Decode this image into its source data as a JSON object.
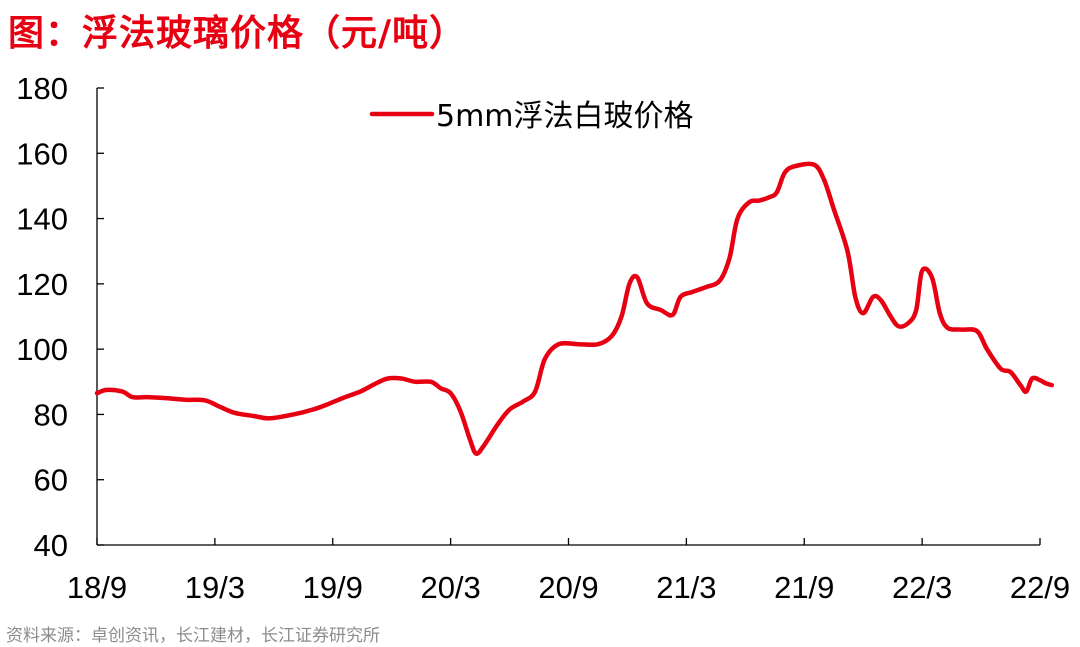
{
  "header": {
    "title": "图：浮法玻璃价格（元/吨）"
  },
  "footer": {
    "source": "资料来源：卓创资讯，长江建材，长江证券研究所"
  },
  "colors": {
    "title": "#e60012",
    "series": "#e60012",
    "axis": "#000000",
    "source_text": "#8c8c8c"
  },
  "chart_data": {
    "type": "line",
    "title": "图：浮法玻璃价格（元/吨）",
    "xlabel": "",
    "ylabel": "",
    "ylim": [
      40,
      180
    ],
    "yticks": [
      40,
      60,
      80,
      100,
      120,
      140,
      160,
      180
    ],
    "xlim": [
      0,
      48
    ],
    "xticks": [
      {
        "pos": 0,
        "label": "18/9"
      },
      {
        "pos": 6,
        "label": "19/3"
      },
      {
        "pos": 12,
        "label": "19/9"
      },
      {
        "pos": 18,
        "label": "20/3"
      },
      {
        "pos": 24,
        "label": "20/9"
      },
      {
        "pos": 30,
        "label": "21/3"
      },
      {
        "pos": 36,
        "label": "21/9"
      },
      {
        "pos": 42,
        "label": "22/3"
      },
      {
        "pos": 48,
        "label": "22/9"
      }
    ],
    "grid": false,
    "legend_position": "top-center",
    "series": [
      {
        "name": "5mm浮法白玻价格",
        "color": "#e60012",
        "points": [
          [
            0.0,
            86.5
          ],
          [
            0.5,
            87.5
          ],
          [
            1.3,
            87.0
          ],
          [
            1.8,
            85.3
          ],
          [
            2.5,
            85.3
          ],
          [
            3.5,
            85.0
          ],
          [
            4.5,
            84.5
          ],
          [
            5.5,
            84.3
          ],
          [
            6.2,
            82.5
          ],
          [
            7.0,
            80.5
          ],
          [
            8.0,
            79.5
          ],
          [
            8.8,
            78.8
          ],
          [
            10.0,
            80.0
          ],
          [
            11.0,
            81.5
          ],
          [
            11.7,
            83.0
          ],
          [
            12.5,
            85.0
          ],
          [
            13.4,
            87.0
          ],
          [
            14.2,
            89.5
          ],
          [
            14.8,
            91.0
          ],
          [
            15.5,
            91.0
          ],
          [
            16.2,
            90.0
          ],
          [
            17.0,
            90.0
          ],
          [
            17.5,
            88.0
          ],
          [
            18.0,
            86.5
          ],
          [
            18.5,
            81.0
          ],
          [
            19.0,
            72.0
          ],
          [
            19.3,
            68.0
          ],
          [
            19.7,
            70.5
          ],
          [
            20.4,
            77.0
          ],
          [
            21.0,
            81.5
          ],
          [
            21.7,
            84.0
          ],
          [
            22.3,
            87.0
          ],
          [
            22.8,
            97.0
          ],
          [
            23.5,
            101.5
          ],
          [
            24.5,
            101.5
          ],
          [
            25.5,
            101.5
          ],
          [
            26.2,
            104.0
          ],
          [
            26.7,
            110.0
          ],
          [
            27.1,
            120.0
          ],
          [
            27.5,
            122.0
          ],
          [
            28.0,
            114.0
          ],
          [
            28.7,
            112.0
          ],
          [
            29.3,
            110.5
          ],
          [
            29.7,
            116.0
          ],
          [
            30.3,
            117.5
          ],
          [
            31.0,
            119.0
          ],
          [
            31.7,
            121.0
          ],
          [
            32.2,
            128.0
          ],
          [
            32.6,
            140.0
          ],
          [
            33.2,
            145.0
          ],
          [
            33.7,
            145.5
          ],
          [
            34.2,
            146.5
          ],
          [
            34.6,
            148.0
          ],
          [
            35.0,
            154.0
          ],
          [
            35.5,
            156.0
          ],
          [
            36.5,
            156.5
          ],
          [
            37.0,
            152.0
          ],
          [
            37.5,
            143.0
          ],
          [
            38.2,
            130.0
          ],
          [
            38.6,
            116.0
          ],
          [
            39.0,
            111.0
          ],
          [
            39.5,
            116.0
          ],
          [
            39.9,
            115.0
          ],
          [
            40.4,
            110.0
          ],
          [
            40.8,
            107.0
          ],
          [
            41.3,
            108.0
          ],
          [
            41.7,
            112.0
          ],
          [
            42.0,
            124.0
          ],
          [
            42.5,
            122.0
          ],
          [
            42.9,
            111.0
          ],
          [
            43.3,
            106.5
          ],
          [
            44.0,
            106.0
          ],
          [
            44.8,
            105.5
          ],
          [
            45.3,
            100.0
          ],
          [
            46.0,
            94.0
          ],
          [
            46.5,
            93.0
          ],
          [
            47.0,
            89.0
          ],
          [
            47.3,
            87.0
          ],
          [
            47.6,
            91.0
          ],
          [
            48.0,
            90.5
          ],
          [
            48.3,
            89.5
          ],
          [
            48.6,
            89.0
          ]
        ]
      }
    ]
  }
}
